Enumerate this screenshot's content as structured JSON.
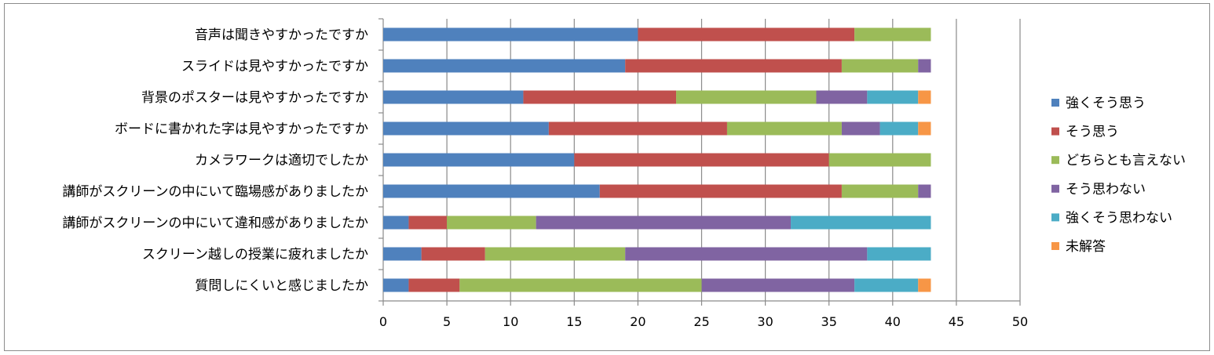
{
  "chart_data": {
    "type": "bar",
    "orientation": "horizontal",
    "stacked": true,
    "categories": [
      "音声は聞きやすかったですか",
      "スライドは見やすかったですか",
      "背景のポスターは見やすかったですか",
      "ボードに書かれた字は見やすかったですか",
      "カメラワークは適切でしたか",
      "講師がスクリーンの中にいて臨場感がありましたか",
      "講師がスクリーンの中にいて違和感がありましたか",
      "スクリーン越しの授業に疲れましたか",
      "質問しにくいと感じましたか"
    ],
    "series": [
      {
        "name": "強くそう思う",
        "color": "#4f81bd",
        "values": [
          20,
          19,
          11,
          13,
          15,
          17,
          2,
          3,
          2
        ]
      },
      {
        "name": "そう思う",
        "color": "#c0504d",
        "values": [
          17,
          17,
          12,
          14,
          20,
          19,
          3,
          5,
          4
        ]
      },
      {
        "name": "どちらとも言えない",
        "color": "#9bbb59",
        "values": [
          6,
          6,
          11,
          9,
          8,
          6,
          7,
          11,
          19
        ]
      },
      {
        "name": "そう思わない",
        "color": "#8064a2",
        "values": [
          0,
          1,
          4,
          3,
          0,
          1,
          20,
          19,
          12
        ]
      },
      {
        "name": "強くそう思わない",
        "color": "#4bacc6",
        "values": [
          0,
          0,
          4,
          3,
          0,
          0,
          11,
          5,
          5
        ]
      },
      {
        "name": "未解答",
        "color": "#f79646",
        "values": [
          0,
          0,
          1,
          1,
          0,
          0,
          0,
          0,
          1
        ]
      }
    ],
    "x_ticks": [
      "0",
      "5",
      "10",
      "15",
      "20",
      "25",
      "30",
      "35",
      "40",
      "45",
      "50"
    ],
    "xlim": [
      0,
      50
    ],
    "grid": true,
    "legend_position": "right",
    "title": "",
    "xlabel": "",
    "ylabel": ""
  }
}
